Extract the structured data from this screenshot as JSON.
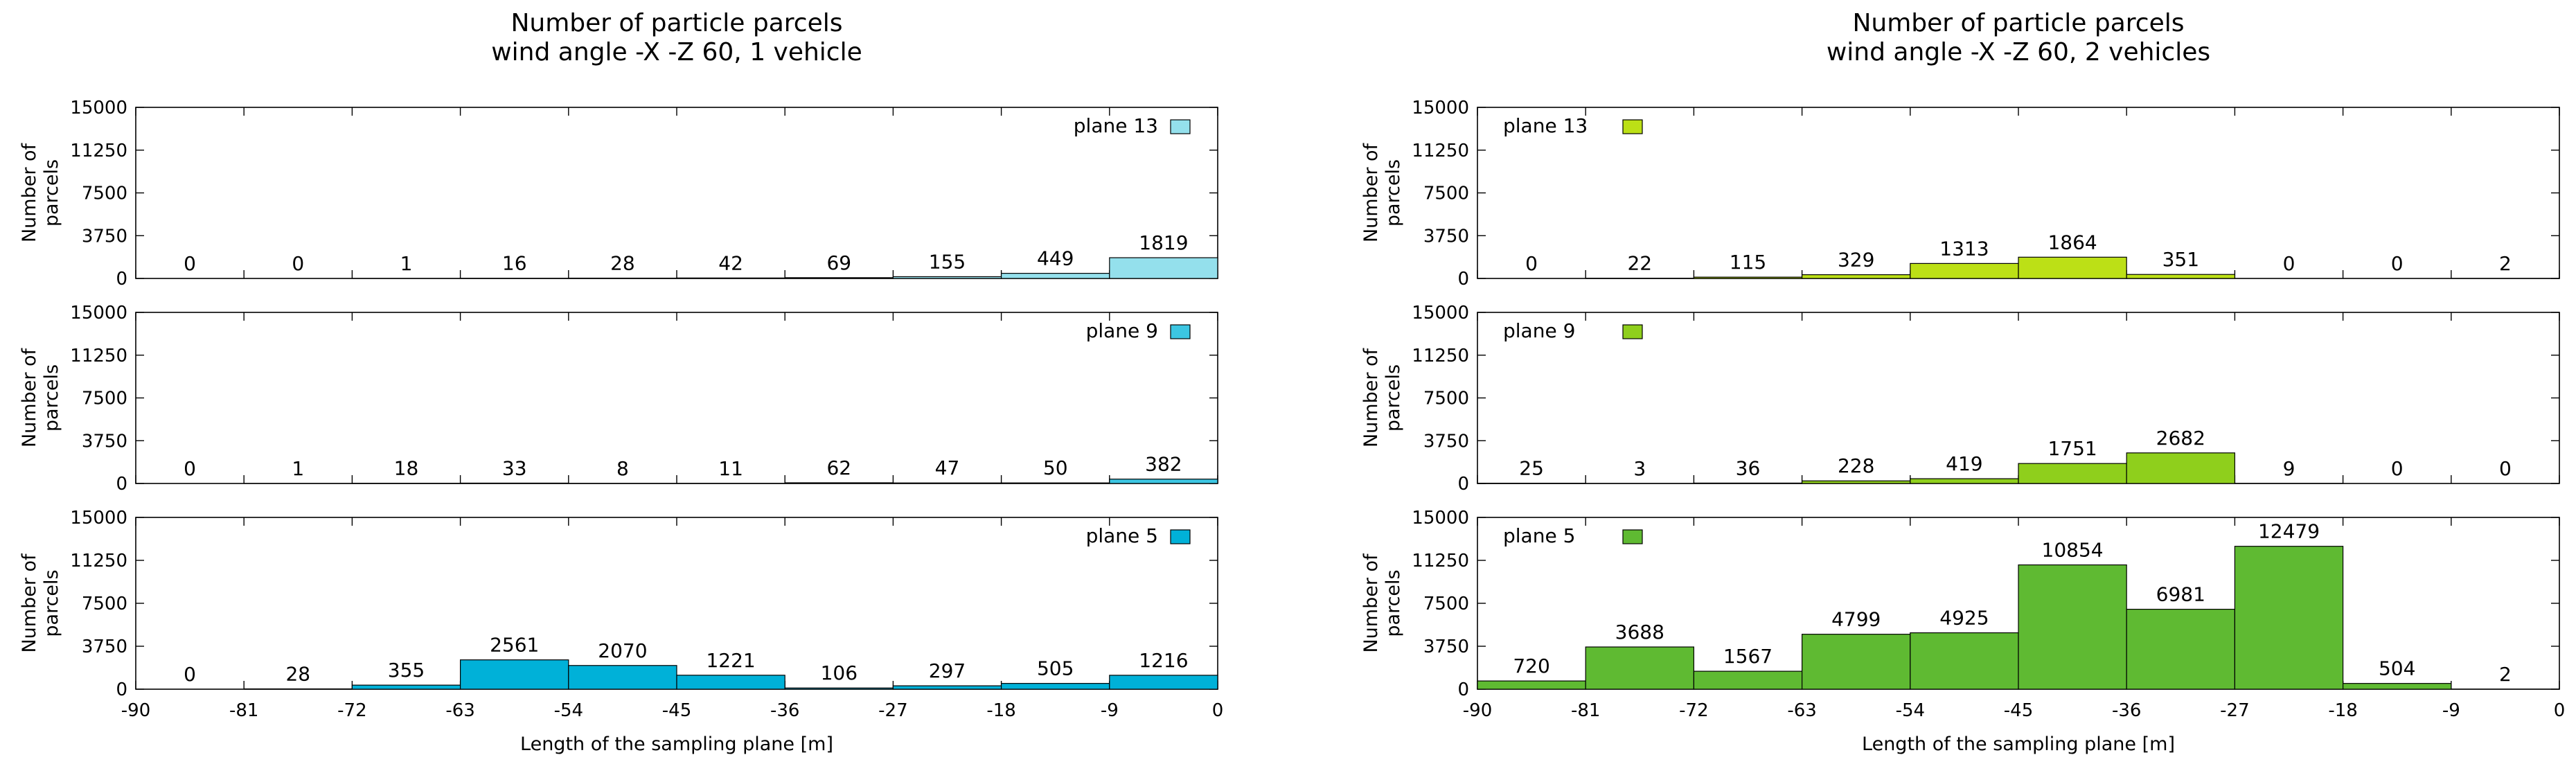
{
  "chart_data": [
    {
      "type": "bar",
      "title": [
        "Number of particle parcels",
        "wind angle -X -Z 60, 1 vehicle"
      ],
      "xlabel": "Length of the sampling plane [m]",
      "ylabel": [
        "Number of",
        "parcels"
      ],
      "xlim": [
        -90,
        0
      ],
      "ylim": [
        0,
        15000
      ],
      "xticks": [
        "-90",
        "-81",
        "-72",
        "-63",
        "-54",
        "-45",
        "-36",
        "-27",
        "-18",
        "-9",
        "0"
      ],
      "yticks": [
        "0",
        "3750",
        "7500",
        "11250",
        "15000"
      ],
      "bin_edges": [
        -90,
        -81,
        -72,
        -63,
        -54,
        -45,
        -36,
        -27,
        -18,
        -9,
        0
      ],
      "legend_position": "top-right",
      "panels": [
        {
          "name": "plane 13",
          "color": "#94e0ec",
          "values": [
            0,
            0,
            1,
            16,
            28,
            42,
            69,
            155,
            449,
            1819
          ],
          "labels": [
            "0",
            "0",
            "1",
            "16",
            "28",
            "42",
            "69",
            "155",
            "449",
            "1819"
          ]
        },
        {
          "name": "plane 9",
          "color": "#3cc6e2",
          "values": [
            0,
            1,
            18,
            33,
            8,
            11,
            62,
            47,
            50,
            382
          ],
          "labels": [
            "0",
            "1",
            "18",
            "33",
            "8",
            "11",
            "62",
            "47",
            "50",
            "382"
          ]
        },
        {
          "name": "plane 5",
          "color": "#00b1d8",
          "values": [
            0,
            28,
            355,
            2561,
            2070,
            1221,
            106,
            297,
            505,
            1216
          ],
          "labels": [
            "0",
            "28",
            "355",
            "2561",
            "2070",
            "1221",
            "106",
            "297",
            "505",
            "1216"
          ]
        }
      ]
    },
    {
      "type": "bar",
      "title": [
        "Number of particle parcels",
        "wind angle -X -Z 60, 2 vehicles"
      ],
      "xlabel": "Length of the sampling plane [m]",
      "ylabel": [
        "Number of",
        "parcels"
      ],
      "xlim": [
        -90,
        0
      ],
      "ylim": [
        0,
        15000
      ],
      "xticks": [
        "-90",
        "-81",
        "-72",
        "-63",
        "-54",
        "-45",
        "-36",
        "-27",
        "-18",
        "-9",
        "0"
      ],
      "yticks": [
        "0",
        "3750",
        "7500",
        "11250",
        "15000"
      ],
      "bin_edges": [
        -90,
        -81,
        -72,
        -63,
        -54,
        -45,
        -36,
        -27,
        -18,
        -9,
        0
      ],
      "legend_position": "top-left",
      "panels": [
        {
          "name": "plane 13",
          "color": "#bce016",
          "values": [
            0,
            22,
            115,
            329,
            1313,
            1864,
            351,
            0,
            0,
            2
          ],
          "labels": [
            "0",
            "22",
            "115",
            "329",
            "1313",
            "1864",
            "351",
            "0",
            "0",
            "2"
          ]
        },
        {
          "name": "plane 9",
          "color": "#8fcf1c",
          "values": [
            25,
            3,
            36,
            228,
            419,
            1751,
            2682,
            9,
            0,
            0
          ],
          "labels": [
            "25",
            "3",
            "36",
            "228",
            "419",
            "1751",
            "2682",
            "9",
            "0",
            "0"
          ]
        },
        {
          "name": "plane 5",
          "color": "#5fba32",
          "values": [
            720,
            3688,
            1567,
            4799,
            4925,
            10854,
            6981,
            12479,
            504,
            2
          ],
          "labels": [
            "720",
            "3688",
            "1567",
            "4799",
            "4925",
            "10854",
            "6981",
            "12479",
            "504",
            "2"
          ]
        }
      ]
    }
  ]
}
